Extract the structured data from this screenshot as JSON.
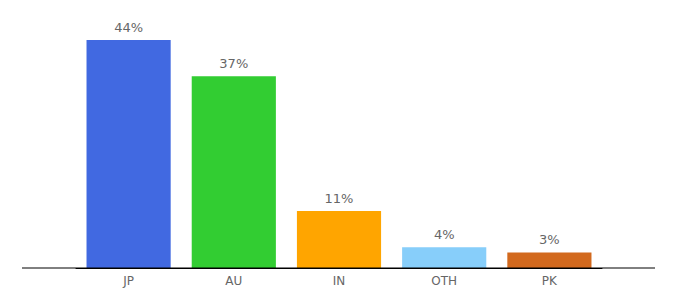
{
  "chart_data": {
    "type": "bar",
    "categories": [
      "JP",
      "AU",
      "IN",
      "OTH",
      "PK"
    ],
    "values": [
      44,
      37,
      11,
      4,
      3
    ],
    "value_labels": [
      "44%",
      "37%",
      "11%",
      "4%",
      "3%"
    ],
    "colors": [
      "#4169e1",
      "#32cd32",
      "#ffa500",
      "#87cefa",
      "#d2691e"
    ],
    "ylim": [
      0,
      44
    ],
    "grid": false,
    "data_labels": true,
    "tick_labels": "x"
  }
}
